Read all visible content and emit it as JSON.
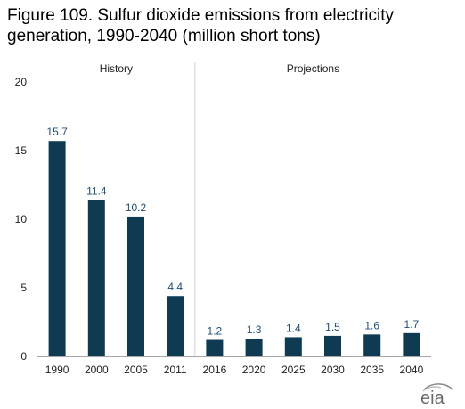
{
  "title_line1": "Figure 109. Sulfur dioxide emissions from electricity",
  "title_line2": "generation, 1990-2040 (million short tons)",
  "logo_text": "eia",
  "colors": {
    "bar": "#0e3a52",
    "label": "#1f4e79",
    "divider": "#d3d3d3",
    "axis": "#a6a6a6"
  },
  "chart_data": {
    "type": "bar",
    "title": "Sulfur dioxide emissions from electricity generation, 1990-2040",
    "units": "million short tons",
    "categories": [
      "1990",
      "2000",
      "2005",
      "2011",
      "2016",
      "2020",
      "2025",
      "2030",
      "2035",
      "2040"
    ],
    "values": [
      15.7,
      11.4,
      10.2,
      4.4,
      1.2,
      1.3,
      1.4,
      1.5,
      1.6,
      1.7
    ],
    "value_labels": [
      "15.7",
      "11.4",
      "10.2",
      "4.4",
      "1.2",
      "1.3",
      "1.4",
      "1.5",
      "1.6",
      "1.7"
    ],
    "yticks": [
      "0",
      "5",
      "10",
      "15",
      "20"
    ],
    "ylim": [
      0,
      20
    ],
    "sections": [
      {
        "label": "History",
        "categories": [
          "1990",
          "2000",
          "2005",
          "2011"
        ]
      },
      {
        "label": "Projections",
        "categories": [
          "2016",
          "2020",
          "2025",
          "2030",
          "2035",
          "2040"
        ]
      }
    ],
    "grid": false
  }
}
